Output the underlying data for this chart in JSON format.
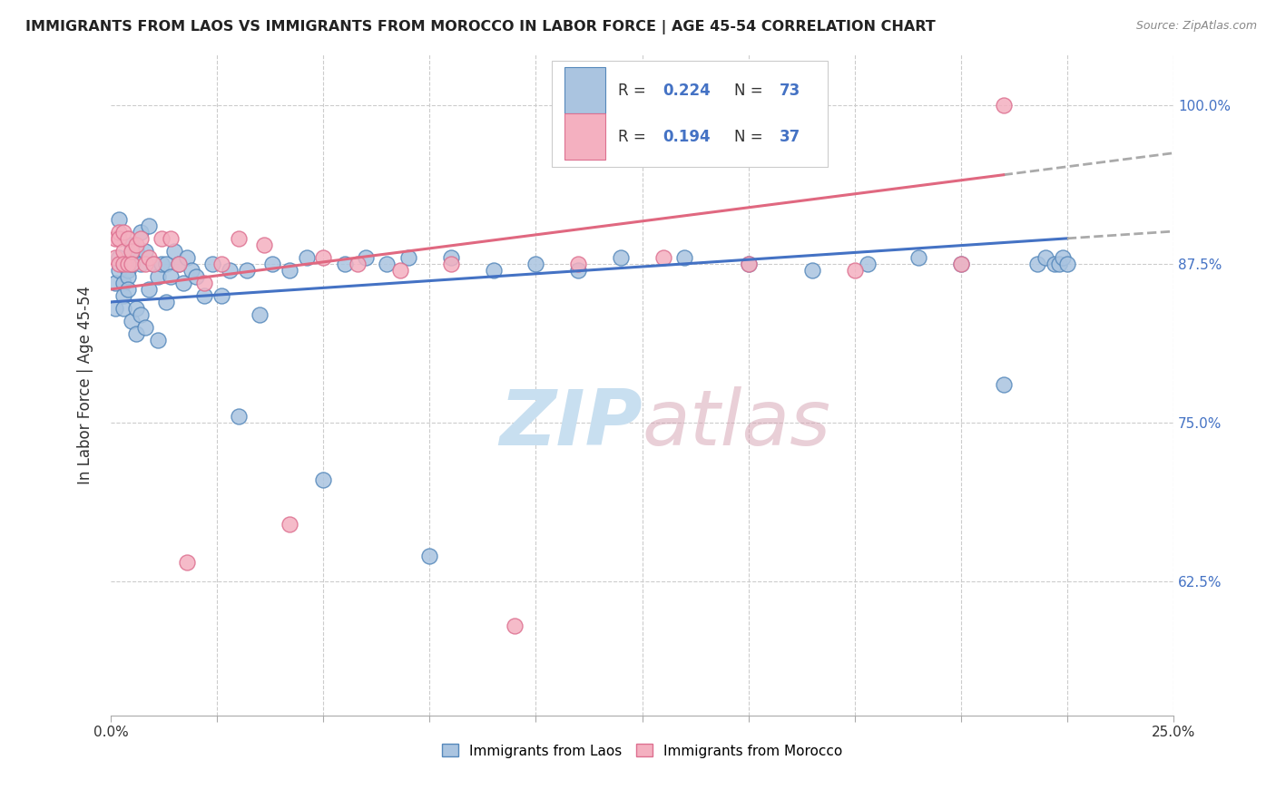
{
  "title": "IMMIGRANTS FROM LAOS VS IMMIGRANTS FROM MOROCCO IN LABOR FORCE | AGE 45-54 CORRELATION CHART",
  "source": "Source: ZipAtlas.com",
  "ylabel": "In Labor Force | Age 45-54",
  "xmin": 0.0,
  "xmax": 0.25,
  "ymin": 0.52,
  "ymax": 1.04,
  "yticks": [
    0.625,
    0.75,
    0.875,
    1.0
  ],
  "ytick_labels": [
    "62.5%",
    "75.0%",
    "87.5%",
    "100.0%"
  ],
  "xticks": [
    0.0,
    0.025,
    0.05,
    0.075,
    0.1,
    0.125,
    0.15,
    0.175,
    0.2,
    0.225,
    0.25
  ],
  "xtick_labels_show": [
    "0.0%",
    "",
    "",
    "",
    "",
    "",
    "",
    "",
    "",
    "",
    "25.0%"
  ],
  "laos_color": "#aac4e0",
  "laos_edge_color": "#5588bb",
  "morocco_color": "#f4b0c0",
  "morocco_edge_color": "#dd7090",
  "line_laos_color": "#4472c4",
  "line_morocco_color": "#e06880",
  "watermark_color": "#c8dff0",
  "laos_x": [
    0.001,
    0.001,
    0.002,
    0.002,
    0.002,
    0.003,
    0.003,
    0.003,
    0.003,
    0.004,
    0.004,
    0.004,
    0.005,
    0.005,
    0.005,
    0.005,
    0.006,
    0.006,
    0.006,
    0.007,
    0.007,
    0.007,
    0.008,
    0.008,
    0.009,
    0.009,
    0.01,
    0.011,
    0.011,
    0.012,
    0.013,
    0.013,
    0.014,
    0.015,
    0.016,
    0.017,
    0.018,
    0.019,
    0.02,
    0.022,
    0.024,
    0.026,
    0.028,
    0.03,
    0.032,
    0.035,
    0.038,
    0.042,
    0.046,
    0.05,
    0.055,
    0.06,
    0.065,
    0.07,
    0.075,
    0.08,
    0.09,
    0.1,
    0.11,
    0.12,
    0.135,
    0.15,
    0.165,
    0.178,
    0.19,
    0.2,
    0.21,
    0.218,
    0.22,
    0.222,
    0.223,
    0.224,
    0.225
  ],
  "laos_y": [
    0.84,
    0.86,
    0.88,
    0.91,
    0.87,
    0.875,
    0.86,
    0.85,
    0.84,
    0.87,
    0.865,
    0.855,
    0.89,
    0.88,
    0.875,
    0.83,
    0.885,
    0.84,
    0.82,
    0.9,
    0.875,
    0.835,
    0.885,
    0.825,
    0.905,
    0.855,
    0.875,
    0.865,
    0.815,
    0.875,
    0.875,
    0.845,
    0.865,
    0.885,
    0.875,
    0.86,
    0.88,
    0.87,
    0.865,
    0.85,
    0.875,
    0.85,
    0.87,
    0.755,
    0.87,
    0.835,
    0.875,
    0.87,
    0.88,
    0.705,
    0.875,
    0.88,
    0.875,
    0.88,
    0.645,
    0.88,
    0.87,
    0.875,
    0.87,
    0.88,
    0.88,
    0.875,
    0.87,
    0.875,
    0.88,
    0.875,
    0.78,
    0.875,
    0.88,
    0.875,
    0.875,
    0.88,
    0.875
  ],
  "morocco_x": [
    0.001,
    0.001,
    0.002,
    0.002,
    0.002,
    0.003,
    0.003,
    0.003,
    0.004,
    0.004,
    0.005,
    0.005,
    0.006,
    0.007,
    0.008,
    0.009,
    0.01,
    0.012,
    0.014,
    0.016,
    0.018,
    0.022,
    0.026,
    0.03,
    0.036,
    0.042,
    0.05,
    0.058,
    0.068,
    0.08,
    0.095,
    0.11,
    0.13,
    0.15,
    0.175,
    0.2,
    0.21
  ],
  "morocco_y": [
    0.895,
    0.88,
    0.9,
    0.895,
    0.875,
    0.9,
    0.885,
    0.875,
    0.895,
    0.875,
    0.885,
    0.875,
    0.89,
    0.895,
    0.875,
    0.88,
    0.875,
    0.895,
    0.895,
    0.875,
    0.64,
    0.86,
    0.875,
    0.895,
    0.89,
    0.67,
    0.88,
    0.875,
    0.87,
    0.875,
    0.59,
    0.875,
    0.88,
    0.875,
    0.87,
    0.875,
    1.0
  ]
}
